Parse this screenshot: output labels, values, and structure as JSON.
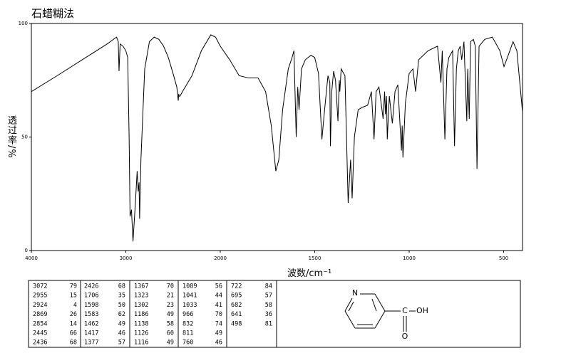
{
  "chart_data": {
    "type": "line",
    "title": "石蜡糊法",
    "x_label": "波数/cm⁻¹",
    "y_label": "透过率/%",
    "color": "#000000",
    "xlim": [
      4000,
      400
    ],
    "xticks": [
      4000,
      3000,
      2000,
      1500,
      1000,
      500
    ],
    "ylim": [
      0,
      100
    ],
    "yticks": [
      0,
      50,
      100
    ],
    "x": [
      4000,
      3727,
      3424,
      3197,
      3098,
      3080,
      3072,
      3060,
      3030,
      3000,
      2980,
      2965,
      2955,
      2940,
      2924,
      2900,
      2880,
      2869,
      2860,
      2854,
      2840,
      2800,
      2750,
      2700,
      2650,
      2600,
      2550,
      2500,
      2460,
      2445,
      2440,
      2436,
      2426,
      2400,
      2300,
      2200,
      2100,
      2050,
      2000,
      1950,
      1900,
      1850,
      1800,
      1760,
      1730,
      1706,
      1690,
      1670,
      1640,
      1620,
      1610,
      1598,
      1590,
      1583,
      1570,
      1550,
      1520,
      1500,
      1480,
      1462,
      1450,
      1430,
      1420,
      1417,
      1410,
      1400,
      1390,
      1377,
      1370,
      1367,
      1360,
      1340,
      1323,
      1310,
      1302,
      1290,
      1270,
      1250,
      1220,
      1200,
      1186,
      1175,
      1160,
      1150,
      1138,
      1130,
      1126,
      1120,
      1116,
      1105,
      1089,
      1075,
      1060,
      1041,
      1037,
      1033,
      1020,
      1000,
      980,
      966,
      950,
      900,
      850,
      832,
      825,
      811,
      800,
      790,
      770,
      760,
      750,
      740,
      730,
      722,
      710,
      695,
      690,
      682,
      675,
      660,
      650,
      641,
      630,
      600,
      560,
      520,
      498,
      480,
      450,
      430,
      410,
      400
    ],
    "values": [
      70,
      77,
      85,
      91,
      94,
      92,
      79,
      91,
      90,
      88,
      85,
      50,
      15,
      18,
      4,
      20,
      35,
      26,
      30,
      14,
      40,
      80,
      92,
      94,
      93,
      90,
      85,
      78,
      72,
      66,
      69,
      68,
      68,
      70,
      77,
      88,
      95,
      94,
      90,
      84,
      77,
      76,
      76,
      70,
      55,
      35,
      40,
      62,
      80,
      85,
      88,
      50,
      72,
      62,
      80,
      84,
      86,
      85,
      78,
      49,
      60,
      77,
      74,
      46,
      70,
      79,
      75,
      57,
      75,
      70,
      80,
      77,
      21,
      40,
      23,
      50,
      62,
      63,
      64,
      70,
      49,
      70,
      72,
      66,
      58,
      70,
      60,
      68,
      49,
      68,
      56,
      70,
      73,
      44,
      55,
      41,
      65,
      78,
      80,
      70,
      84,
      88,
      90,
      74,
      88,
      49,
      80,
      85,
      88,
      46,
      80,
      88,
      90,
      84,
      92,
      57,
      80,
      58,
      92,
      93,
      90,
      36,
      90,
      93,
      94,
      88,
      81,
      85,
      92,
      88,
      70,
      61
    ]
  },
  "peak_table": [
    [
      3072,
      79
    ],
    [
      2955,
      15
    ],
    [
      2924,
      4
    ],
    [
      2869,
      26
    ],
    [
      2854,
      14
    ],
    [
      2445,
      66
    ],
    [
      2436,
      68
    ],
    [
      2426,
      68
    ],
    [
      1706,
      35
    ],
    [
      1598,
      50
    ],
    [
      1583,
      62
    ],
    [
      1462,
      49
    ],
    [
      1417,
      46
    ],
    [
      1377,
      57
    ],
    [
      1367,
      70
    ],
    [
      1323,
      21
    ],
    [
      1302,
      23
    ],
    [
      1186,
      49
    ],
    [
      1138,
      58
    ],
    [
      1126,
      60
    ],
    [
      1116,
      49
    ],
    [
      1089,
      56
    ],
    [
      1041,
      44
    ],
    [
      1033,
      41
    ],
    [
      966,
      70
    ],
    [
      832,
      74
    ],
    [
      811,
      49
    ],
    [
      760,
      46
    ],
    [
      722,
      84
    ],
    [
      695,
      57
    ],
    [
      682,
      58
    ],
    [
      641,
      36
    ],
    [
      498,
      81
    ]
  ],
  "structure": {
    "atoms": [
      "N",
      "C",
      "OH",
      "O"
    ]
  }
}
